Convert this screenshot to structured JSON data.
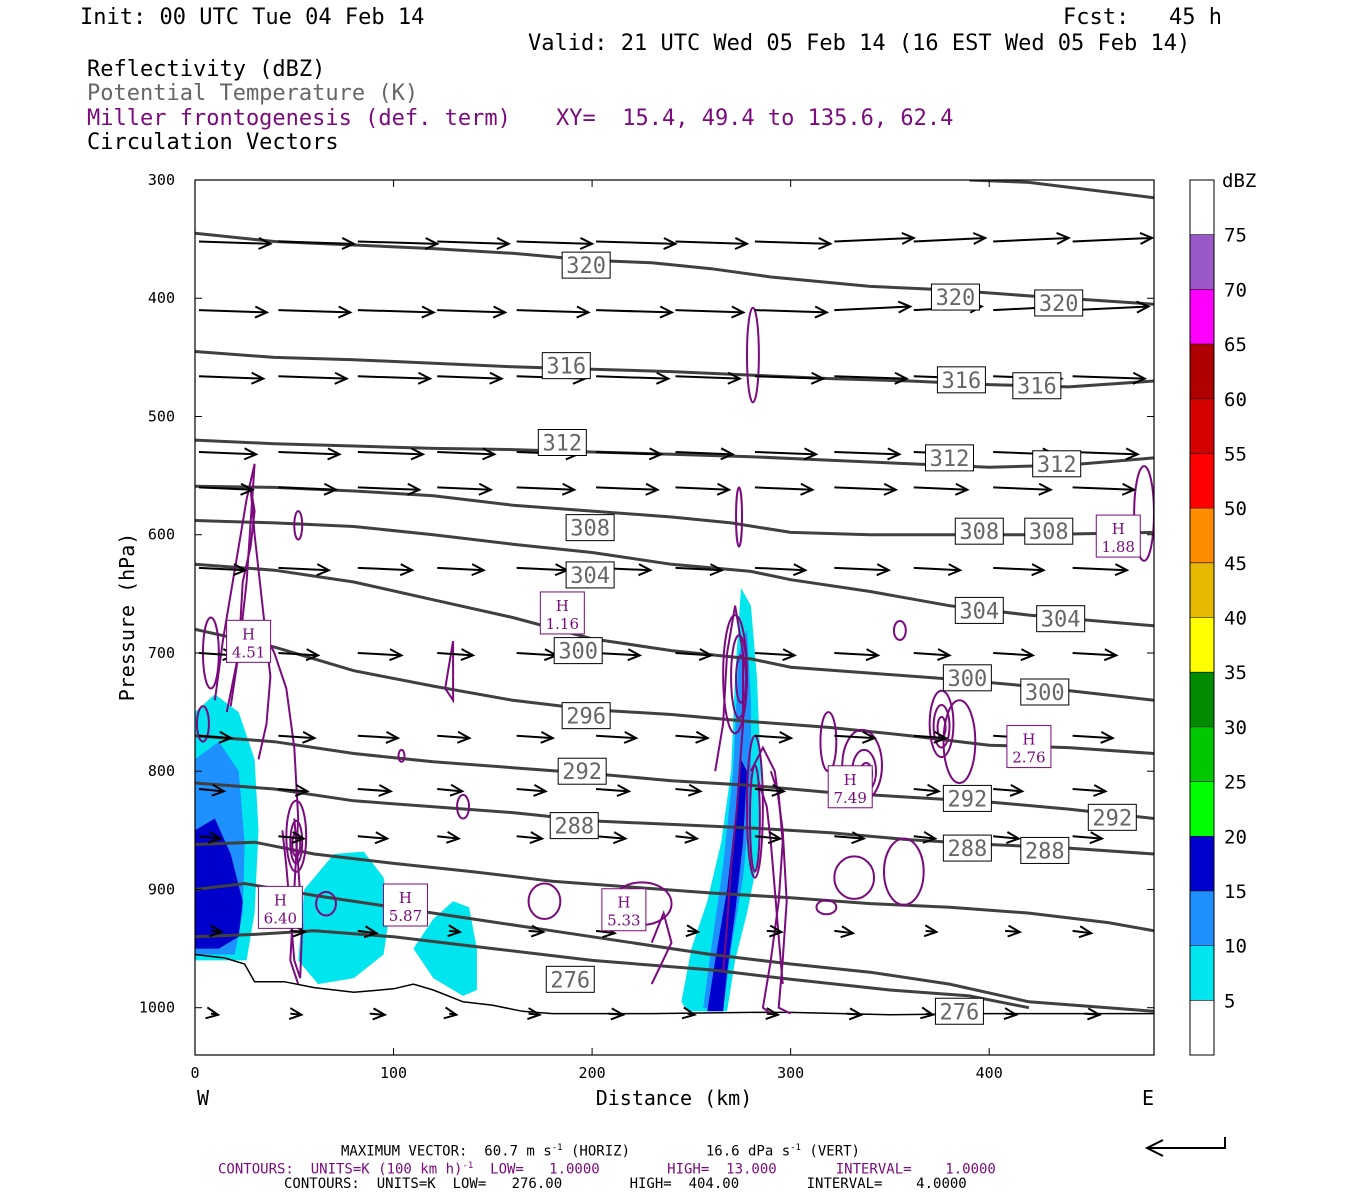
{
  "header": {
    "init": "Init: 00 UTC Tue 04 Feb 14",
    "fcst": "Fcst:   45 h",
    "valid": "Valid: 21 UTC Wed 05 Feb 14 (16 EST Wed 05 Feb 14)"
  },
  "fields": {
    "reflectivity": "Reflectivity (dBZ)",
    "theta": "Potential Temperature (K)",
    "frontogenesis": "Miller frontogenesis (def. term)",
    "xy": "XY=  15.4, 49.4 to 135.6, 62.4",
    "vectors": "Circulation Vectors"
  },
  "colors": {
    "purple": "#7b0a7e",
    "theta_gray": "#404040",
    "theta_label_color": "#666666"
  },
  "footer": {
    "max_vector_prefix": "MAXIMUM VECTOR:  60.7 m s",
    "max_vector_mid": " (HORIZ)         16.6 dPa s",
    "max_vector_suffix": " (VERT)",
    "sup_minus1": "-1",
    "fronto_contours_a": "CONTOURS:  UNITS=K (100 km h)",
    "fronto_contours_b": "  LOW=   1.0000        HIGH=  13.000       INTERVAL=    1.0000",
    "theta_contours": "CONTOURS:  UNITS=K  LOW=   276.00        HIGH=  404.00        INTERVAL=    4.0000"
  },
  "chart_data": {
    "type": "cross-section",
    "ylabel": "Pressure (hPa)",
    "xlabel": "Distance (km)",
    "x_ticks": [
      0,
      100,
      200,
      300,
      400
    ],
    "x_tick_labels": [
      "0",
      "100",
      "200",
      "300",
      "400"
    ],
    "y_ticks": [
      300,
      400,
      500,
      600,
      700,
      800,
      900,
      1000
    ],
    "y_tick_labels": [
      "300",
      "400",
      "500",
      "600",
      "700",
      "800",
      "900",
      "1000"
    ],
    "xlim": [
      0,
      483
    ],
    "ylim_hpa": [
      300,
      1040
    ],
    "end_labels": {
      "west": "W",
      "east": "E"
    },
    "colorbar": {
      "unit": "dBZ",
      "levels": [
        "5",
        "10",
        "15",
        "20",
        "25",
        "30",
        "35",
        "40",
        "45",
        "50",
        "55",
        "60",
        "65",
        "70",
        "75"
      ],
      "colors": [
        "#ffffff",
        "#00e5ee",
        "#1e90ff",
        "#0000cd",
        "#00ff00",
        "#00c800",
        "#008b00",
        "#ffff00",
        "#e6b800",
        "#ff8c00",
        "#ff0000",
        "#d40000",
        "#b00000",
        "#ff00ff",
        "#9b59c8",
        "#ffffff"
      ]
    },
    "theta_labels": [
      {
        "text": "320",
        "x": 197,
        "p": 372
      },
      {
        "text": "320",
        "x": 383,
        "p": 399
      },
      {
        "text": "320",
        "x": 435,
        "p": 404
      },
      {
        "text": "316",
        "x": 187,
        "p": 457
      },
      {
        "text": "316",
        "x": 386,
        "p": 469
      },
      {
        "text": "316",
        "x": 424,
        "p": 474
      },
      {
        "text": "312",
        "x": 185,
        "p": 522
      },
      {
        "text": "312",
        "x": 380,
        "p": 535
      },
      {
        "text": "312",
        "x": 434,
        "p": 540
      },
      {
        "text": "308",
        "x": 199,
        "p": 594
      },
      {
        "text": "308",
        "x": 395,
        "p": 597
      },
      {
        "text": "308",
        "x": 430,
        "p": 597
      },
      {
        "text": "304",
        "x": 199,
        "p": 634
      },
      {
        "text": "304",
        "x": 395,
        "p": 664
      },
      {
        "text": "304",
        "x": 436,
        "p": 671
      },
      {
        "text": "300",
        "x": 193,
        "p": 698
      },
      {
        "text": "300",
        "x": 389,
        "p": 721
      },
      {
        "text": "300",
        "x": 428,
        "p": 733
      },
      {
        "text": "296",
        "x": 197,
        "p": 753
      },
      {
        "text": "292",
        "x": 195,
        "p": 800
      },
      {
        "text": "292",
        "x": 389,
        "p": 823
      },
      {
        "text": "292",
        "x": 462,
        "p": 839
      },
      {
        "text": "288",
        "x": 191,
        "p": 846
      },
      {
        "text": "288",
        "x": 389,
        "p": 865
      },
      {
        "text": "288",
        "x": 428,
        "p": 867
      },
      {
        "text": "276",
        "x": 189,
        "p": 976
      },
      {
        "text": "276",
        "x": 385,
        "p": 1003
      }
    ],
    "fronto_max": [
      {
        "value": "4.51",
        "x": 27,
        "p": 691
      },
      {
        "value": "1.16",
        "x": 185,
        "p": 667
      },
      {
        "value": "6.40",
        "x": 43,
        "p": 916
      },
      {
        "value": "5.87",
        "x": 106,
        "p": 914
      },
      {
        "value": "5.33",
        "x": 216,
        "p": 918
      },
      {
        "value": "7.49",
        "x": 330,
        "p": 814
      },
      {
        "value": "2.76",
        "x": 420,
        "p": 780
      },
      {
        "value": "1.88",
        "x": 465,
        "p": 602
      }
    ]
  }
}
